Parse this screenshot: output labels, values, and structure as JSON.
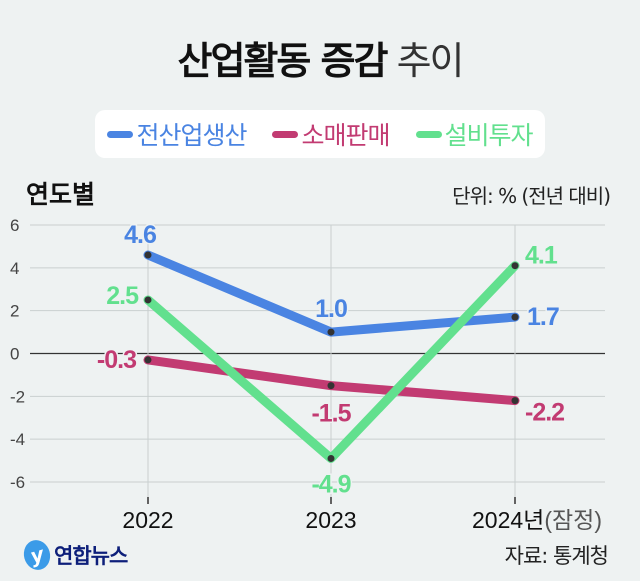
{
  "title_bold": "산업활동 증감",
  "title_light": "추이",
  "subtitle": "연도별",
  "unit": "단위: % (전년 대비)",
  "source": "자료: 통계청",
  "logo_text": "연합뉴스",
  "chart_data": {
    "type": "line",
    "categories": [
      "2022",
      "2023",
      "2024년"
    ],
    "category_suffix": [
      "",
      "",
      "(잠정)"
    ],
    "ylim": [
      -6,
      6
    ],
    "yticks": [
      6,
      4,
      2,
      0,
      -2,
      -4,
      -6
    ],
    "grid": true,
    "legend_position": "top",
    "series": [
      {
        "name": "전산업생산",
        "color": "#4a84e2",
        "values": [
          4.6,
          1.0,
          1.7
        ],
        "labels": [
          "4.6",
          "1.0",
          "1.7"
        ]
      },
      {
        "name": "소매판매",
        "color": "#c23b72",
        "values": [
          -0.3,
          -1.5,
          -2.2
        ],
        "labels": [
          "-0.3",
          "-1.5",
          "-2.2"
        ]
      },
      {
        "name": "설비투자",
        "color": "#62e08e",
        "values": [
          2.5,
          -4.9,
          4.1
        ],
        "labels": [
          "2.5",
          "-4.9",
          "4.1"
        ]
      }
    ]
  }
}
